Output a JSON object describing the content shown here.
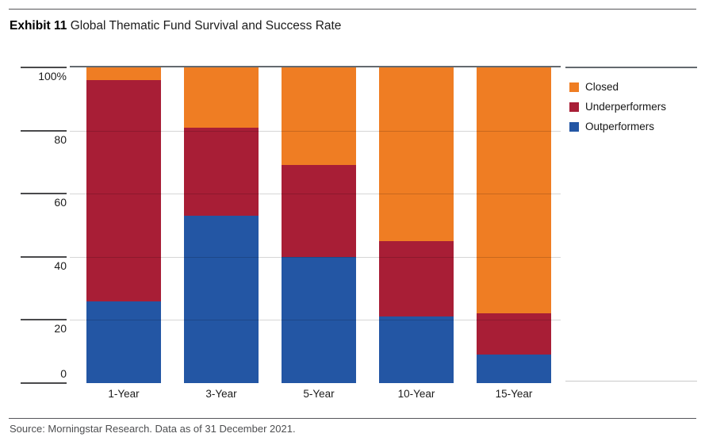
{
  "title": {
    "exhibit": "Exhibit 11",
    "text": "Global Thematic Fund Survival and Success Rate"
  },
  "source_text": "Source: Morningstar Research. Data as of 31 December 2021.",
  "chart_data": {
    "type": "bar",
    "stacked": true,
    "title": "Global Thematic Fund Survival and Success Rate",
    "categories": [
      "1-Year",
      "3-Year",
      "5-Year",
      "10-Year",
      "15-Year"
    ],
    "series": [
      {
        "name": "Outperformers",
        "color": "#2356A4",
        "values": [
          26,
          53,
          40,
          21,
          9
        ]
      },
      {
        "name": "Underperformers",
        "color": "#A81E36",
        "values": [
          70,
          28,
          29,
          24,
          13
        ]
      },
      {
        "name": "Closed",
        "color": "#EF7D23",
        "values": [
          4,
          19,
          31,
          55,
          78
        ]
      }
    ],
    "xlabel": "",
    "ylabel": "",
    "ylim": [
      0,
      100
    ],
    "y_axis": {
      "tick_values": [
        100,
        80,
        60,
        40,
        20,
        0
      ],
      "tick_labels": [
        "100%",
        "80",
        "60",
        "40",
        "20",
        "0"
      ]
    },
    "grid": true,
    "legend": {
      "position": "top-right",
      "order": [
        "Closed",
        "Underperformers",
        "Outperformers"
      ]
    }
  }
}
